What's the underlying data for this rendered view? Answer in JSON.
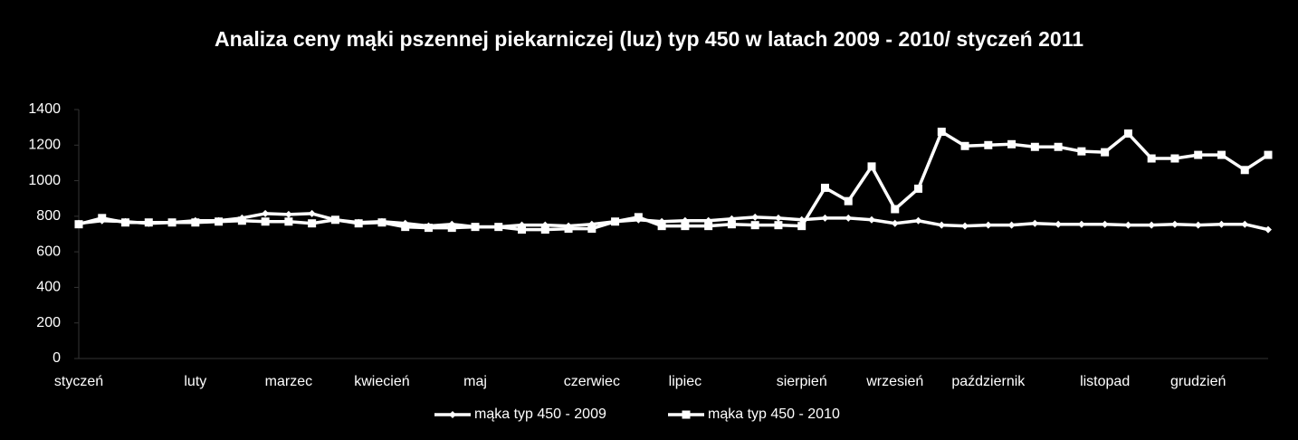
{
  "chart_data": {
    "type": "line",
    "title": "Analiza ceny mąki pszennej piekarniczej (luz) typ 450 w latach 2009 - 2010/ styczeń 2011",
    "categories": [
      "styczeń",
      null,
      null,
      null,
      null,
      "luty",
      null,
      null,
      null,
      "marzec",
      null,
      null,
      null,
      "kwiecień",
      null,
      null,
      null,
      "maj",
      null,
      null,
      null,
      null,
      "czerwiec",
      null,
      null,
      null,
      "lipiec",
      null,
      null,
      null,
      null,
      "sierpień",
      null,
      null,
      null,
      "wrzesień",
      null,
      null,
      null,
      "październik",
      null,
      null,
      null,
      null,
      "listopad",
      null,
      null,
      null,
      "grudzień",
      null,
      null,
      null
    ],
    "series": [
      {
        "name": "mąka typ 450 - 2009",
        "color": "#ffffff",
        "marker": "diamond",
        "values": [
          760,
          775,
          770,
          760,
          765,
          775,
          775,
          790,
          815,
          810,
          815,
          780,
          765,
          770,
          760,
          745,
          755,
          740,
          740,
          750,
          750,
          745,
          755,
          770,
          780,
          770,
          775,
          775,
          785,
          795,
          790,
          780,
          790,
          790,
          780,
          760,
          775,
          750,
          745,
          750,
          750,
          760,
          755,
          755,
          755,
          750,
          750,
          755,
          750,
          755,
          755,
          725
        ]
      },
      {
        "name": "mąka typ 450 - 2010",
        "color": "#ffffff",
        "marker": "square",
        "values": [
          755,
          790,
          765,
          765,
          765,
          765,
          770,
          775,
          770,
          770,
          760,
          780,
          760,
          765,
          740,
          735,
          735,
          740,
          740,
          725,
          725,
          730,
          730,
          770,
          795,
          745,
          745,
          745,
          755,
          750,
          750,
          745,
          960,
          885,
          1080,
          840,
          955,
          1275,
          1195,
          1200,
          1205,
          1190,
          1190,
          1165,
          1160,
          1265,
          1125,
          1125,
          1145,
          1145,
          1060,
          1145
        ]
      }
    ],
    "ylim": [
      0,
      1400
    ],
    "yticks": [
      0,
      200,
      400,
      600,
      800,
      1000,
      1200,
      1400
    ],
    "grid": false,
    "legend": "bottom"
  }
}
